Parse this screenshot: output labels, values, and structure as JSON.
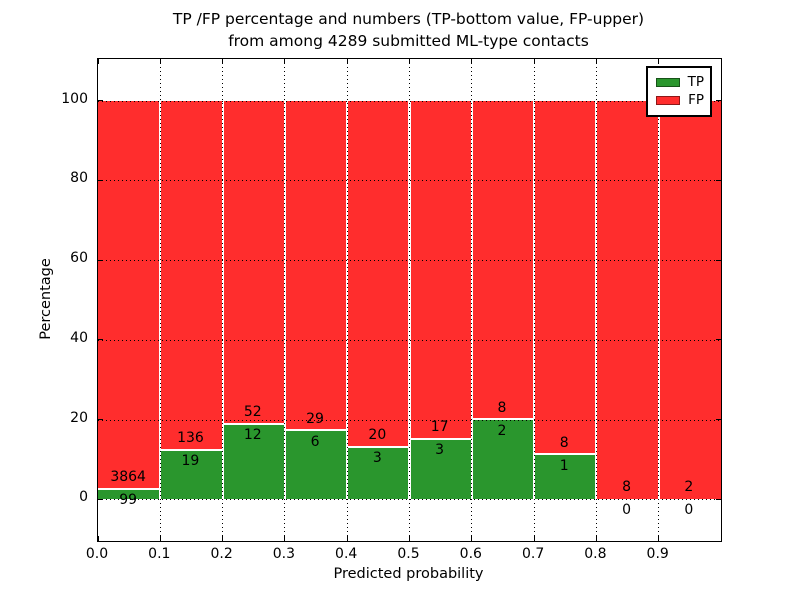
{
  "title": {
    "line1": "TP /FP percentage and numbers (TP-bottom value, FP-upper)",
    "line2": "from among 4289 submitted ML-type contacts"
  },
  "legend": {
    "items": [
      {
        "label": "TP",
        "color": "#2a962d"
      },
      {
        "label": "FP",
        "color": "#ff2d2d"
      }
    ],
    "position": "upper right"
  },
  "chart_data": {
    "type": "bar",
    "stacked": true,
    "normalized": "percent_of_bin_total",
    "title": "TP /FP percentage and numbers (TP-bottom value, FP-upper) from among 4289 submitted ML-type contacts",
    "xlabel": "Predicted probability",
    "ylabel": "Percentage",
    "xlim": [
      0.0,
      1.0
    ],
    "ylim": [
      -10.5,
      110.5
    ],
    "bin_width": 0.1,
    "bin_left_edges": [
      0.0,
      0.1,
      0.2,
      0.3,
      0.4,
      0.5,
      0.6,
      0.7,
      0.8,
      0.9
    ],
    "categories": [
      "0.0-0.1",
      "0.1-0.2",
      "0.2-0.3",
      "0.3-0.4",
      "0.4-0.5",
      "0.5-0.6",
      "0.6-0.7",
      "0.7-0.8",
      "0.8-0.9",
      "0.9-1.0"
    ],
    "series": [
      {
        "name": "TP",
        "color": "#2a962d",
        "counts": [
          99,
          19,
          12,
          6,
          3,
          3,
          2,
          1,
          0,
          0
        ],
        "percent_height": [
          2.5,
          12.3,
          18.8,
          17.1,
          13.0,
          15.0,
          20.0,
          11.1,
          0.0,
          0.0
        ]
      },
      {
        "name": "FP",
        "color": "#ff2d2d",
        "counts": [
          3864,
          136,
          52,
          29,
          20,
          17,
          8,
          8,
          8,
          2
        ],
        "percent_height": [
          97.5,
          87.7,
          81.2,
          82.9,
          87.0,
          85.0,
          80.0,
          88.9,
          100.0,
          100.0
        ]
      }
    ],
    "xticks": [
      "0.0",
      "0.1",
      "0.2",
      "0.3",
      "0.4",
      "0.5",
      "0.6",
      "0.7",
      "0.8",
      "0.9"
    ],
    "yticks": [
      0,
      20,
      40,
      60,
      80,
      100
    ],
    "grid": {
      "style": "dotted",
      "color": "#000000",
      "above_bars": true
    },
    "legend_position": "upper right",
    "annotation_note": "FP count printed just above green/red boundary, TP count just below it"
  }
}
